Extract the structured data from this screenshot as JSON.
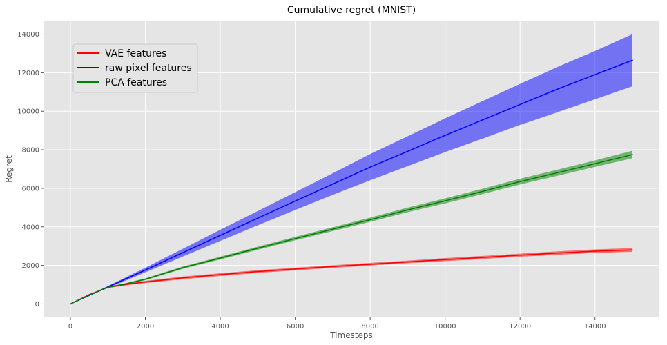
{
  "chart_data": {
    "type": "line",
    "title": "Cumulative regret (MNIST)",
    "xlabel": "Timesteps",
    "ylabel": "Regret",
    "xlim": [
      -700,
      15700
    ],
    "ylim": [
      -700,
      14700
    ],
    "xticks": [
      0,
      2000,
      4000,
      6000,
      8000,
      10000,
      12000,
      14000
    ],
    "yticks": [
      0,
      2000,
      4000,
      6000,
      8000,
      10000,
      12000,
      14000
    ],
    "grid": true,
    "legend_position": "upper-left",
    "x": [
      0,
      500,
      1000,
      1500,
      2000,
      3000,
      4000,
      5000,
      6000,
      7000,
      8000,
      9000,
      10000,
      11000,
      12000,
      13000,
      14000,
      15000
    ],
    "series": [
      {
        "name": "VAE features",
        "color": "#ff0000",
        "values": [
          0,
          480,
          860,
          1020,
          1140,
          1350,
          1520,
          1680,
          1810,
          1940,
          2060,
          2180,
          2300,
          2410,
          2530,
          2640,
          2740,
          2800
        ],
        "lower": [
          0,
          455,
          820,
          970,
          1080,
          1280,
          1450,
          1610,
          1740,
          1870,
          1990,
          2110,
          2220,
          2330,
          2450,
          2550,
          2650,
          2700
        ],
        "upper": [
          0,
          505,
          900,
          1070,
          1200,
          1420,
          1590,
          1750,
          1880,
          2010,
          2130,
          2250,
          2380,
          2490,
          2610,
          2730,
          2830,
          2900
        ]
      },
      {
        "name": "raw pixel features",
        "color": "#0000ff",
        "values": [
          0,
          440,
          880,
          1320,
          1760,
          2660,
          3560,
          4450,
          5340,
          6220,
          7100,
          7920,
          8750,
          9550,
          10350,
          11150,
          11900,
          12650
        ],
        "lower": [
          0,
          420,
          830,
          1230,
          1640,
          2460,
          3270,
          4080,
          4880,
          5660,
          6420,
          7150,
          7880,
          8580,
          9290,
          9950,
          10620,
          11300
        ],
        "upper": [
          0,
          460,
          930,
          1400,
          1880,
          2860,
          3850,
          4820,
          5800,
          6780,
          7780,
          8700,
          9630,
          10530,
          11420,
          12300,
          13130,
          14000
        ]
      },
      {
        "name": "PCA features",
        "color": "#008000",
        "values": [
          0,
          460,
          860,
          1050,
          1280,
          1880,
          2380,
          2890,
          3390,
          3880,
          4370,
          4880,
          5350,
          5840,
          6350,
          6810,
          7280,
          7750
        ],
        "lower": [
          0,
          440,
          830,
          1010,
          1230,
          1820,
          2310,
          2810,
          3300,
          3780,
          4260,
          4760,
          5220,
          5700,
          6200,
          6650,
          7110,
          7560
        ],
        "upper": [
          0,
          480,
          890,
          1090,
          1330,
          1940,
          2450,
          2970,
          3480,
          3980,
          4480,
          5000,
          5480,
          5980,
          6500,
          6970,
          7450,
          7950
        ]
      }
    ]
  }
}
